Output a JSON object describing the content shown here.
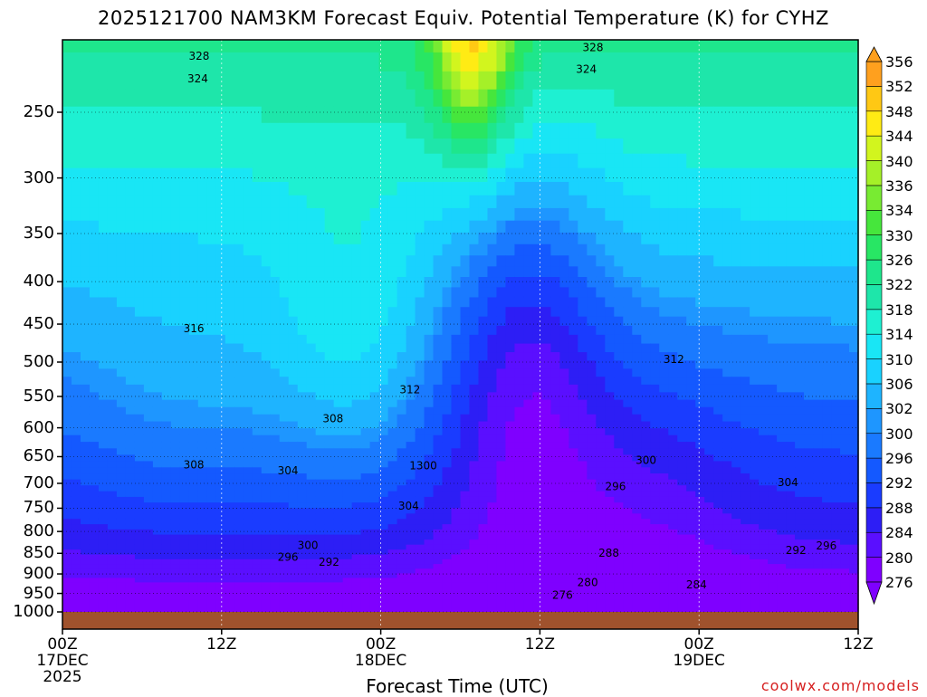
{
  "title": "2025121700 NAM3KM Forecast Equiv. Potential Temperature (K) for CYHZ",
  "credit": "coolwx.com/models",
  "chart_data": {
    "type": "heatmap",
    "title": "2025121700 NAM3KM Forecast Equiv. Potential Temperature (K) for CYHZ",
    "xlabel": "Forecast Time (UTC)",
    "ylabel": "",
    "x_ticks": [
      {
        "lines": [
          "00Z",
          "17DEC",
          "2025"
        ],
        "hour": 0
      },
      {
        "lines": [
          "12Z"
        ],
        "hour": 12
      },
      {
        "lines": [
          "00Z",
          "18DEC"
        ],
        "hour": 24
      },
      {
        "lines": [
          "12Z"
        ],
        "hour": 36
      },
      {
        "lines": [
          "00Z",
          "19DEC"
        ],
        "hour": 48
      },
      {
        "lines": [
          "12Z"
        ],
        "hour": 60
      }
    ],
    "xlim_hours": [
      0,
      60
    ],
    "y_ticks_hpa": [
      250,
      300,
      350,
      400,
      450,
      500,
      550,
      600,
      650,
      700,
      750,
      800,
      850,
      900,
      950,
      1000
    ],
    "ylim_hpa": [
      1000,
      200
    ],
    "grid": true,
    "colorbar": {
      "levels": [
        276,
        280,
        284,
        288,
        292,
        296,
        300,
        302,
        306,
        310,
        314,
        318,
        322,
        326,
        330,
        334,
        336,
        340,
        344,
        348,
        352,
        356
      ],
      "colors": [
        "#7f00ff",
        "#5a0fff",
        "#2d1ef5",
        "#1a3cff",
        "#1459ff",
        "#1a7aff",
        "#1e96ff",
        "#1eb4ff",
        "#19d2ff",
        "#19e6f5",
        "#1ef0d2",
        "#1ee6aa",
        "#1ee68c",
        "#28e664",
        "#46e63c",
        "#78eb32",
        "#a5f028",
        "#d2f51e",
        "#ffeb14",
        "#ffc814",
        "#ffa01e"
      ]
    },
    "contour_labels": [
      {
        "text": "328",
        "hour": 10.3,
        "hpa": 216
      },
      {
        "text": "324",
        "hour": 10.2,
        "hpa": 230
      },
      {
        "text": "328",
        "hour": 40.0,
        "hpa": 211
      },
      {
        "text": "324",
        "hour": 39.5,
        "hpa": 224
      },
      {
        "text": "316",
        "hour": 9.9,
        "hpa": 460
      },
      {
        "text": "312",
        "hour": 26.2,
        "hpa": 545
      },
      {
        "text": "312",
        "hour": 46.1,
        "hpa": 501
      },
      {
        "text": "308",
        "hour": 20.4,
        "hpa": 591
      },
      {
        "text": "308",
        "hour": 9.9,
        "hpa": 672
      },
      {
        "text": "304",
        "hour": 17.0,
        "hpa": 683
      },
      {
        "text": "1300",
        "hour": 27.2,
        "hpa": 673
      },
      {
        "text": "304",
        "hour": 26.1,
        "hpa": 753
      },
      {
        "text": "300",
        "hour": 44.0,
        "hpa": 663
      },
      {
        "text": "296",
        "hour": 41.7,
        "hpa": 713
      },
      {
        "text": "304",
        "hour": 54.7,
        "hpa": 705
      },
      {
        "text": "300",
        "hour": 18.5,
        "hpa": 840
      },
      {
        "text": "296",
        "hour": 17.0,
        "hpa": 868
      },
      {
        "text": "292",
        "hour": 20.1,
        "hpa": 880
      },
      {
        "text": "288",
        "hour": 41.2,
        "hpa": 858
      },
      {
        "text": "292",
        "hour": 55.3,
        "hpa": 852
      },
      {
        "text": "296",
        "hour": 57.6,
        "hpa": 841
      },
      {
        "text": "280",
        "hour": 39.6,
        "hpa": 931
      },
      {
        "text": "284",
        "hour": 47.8,
        "hpa": 937
      },
      {
        "text": "276",
        "hour": 37.7,
        "hpa": 964
      }
    ]
  }
}
